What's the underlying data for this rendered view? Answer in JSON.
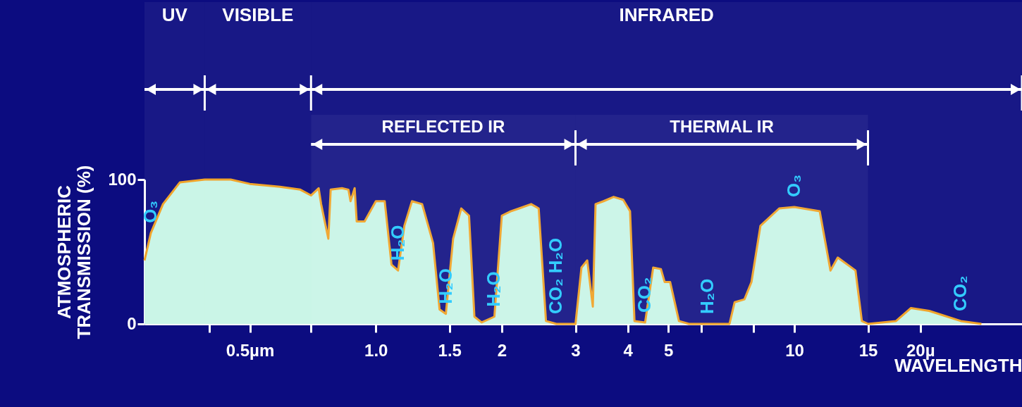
{
  "chart_data": {
    "type": "area",
    "ylabel": "ATMOSPHERIC TRANSMISSION (%)",
    "xlabel": "WAVELENGTH",
    "log": "x",
    "grid": false,
    "xlim": [
      0.28,
      35
    ],
    "ylim": [
      0,
      100
    ],
    "xticks": [
      {
        "value": 0.4,
        "label": null
      },
      {
        "value": 0.5,
        "label": "0.5µm"
      },
      {
        "value": 0.7,
        "label": null
      },
      {
        "value": 1,
        "label": "1.0"
      },
      1.5,
      2,
      3,
      4,
      5,
      {
        "value": 6,
        "label": null
      },
      {
        "value": 8,
        "label": null
      },
      10,
      15,
      {
        "value": 20,
        "label": "20µ"
      }
    ],
    "yticks": [
      0,
      100
    ],
    "x": [
      0.28,
      0.29,
      0.31,
      0.34,
      0.39,
      0.45,
      0.5,
      0.59,
      0.66,
      0.7,
      0.73,
      0.74,
      0.77,
      0.78,
      0.83,
      0.86,
      0.87,
      0.89,
      0.9,
      0.94,
      1.0,
      1.05,
      1.09,
      1.13,
      1.17,
      1.22,
      1.29,
      1.37,
      1.42,
      1.47,
      1.53,
      1.6,
      1.67,
      1.72,
      1.79,
      1.92,
      2.0,
      2.1,
      2.2,
      2.35,
      2.45,
      2.55,
      2.7,
      3.0,
      3.1,
      3.2,
      3.3,
      3.35,
      3.5,
      3.7,
      3.9,
      4.05,
      4.15,
      4.4,
      4.6,
      4.8,
      4.9,
      5.05,
      5.3,
      5.6,
      6.2,
      7.0,
      7.2,
      7.6,
      7.9,
      8.3,
      9.2,
      10,
      11.5,
      12.2,
      12.7,
      14,
      14.5,
      15,
      17.5,
      19,
      21,
      25,
      28
    ],
    "series": [
      {
        "color": "#c8f5e6",
        "values": [
          44,
          63,
          83,
          98,
          100,
          100,
          97,
          95,
          93,
          89,
          94,
          83,
          59,
          93,
          94,
          93,
          85,
          94,
          71,
          71,
          85,
          85,
          41,
          37,
          68,
          85,
          83,
          56,
          10,
          7,
          59,
          80,
          75,
          5,
          1,
          5,
          75,
          78,
          80,
          83,
          80,
          2,
          0,
          0,
          39,
          44,
          12,
          83,
          85,
          88,
          86,
          78,
          2,
          1,
          39,
          38,
          29,
          29,
          2,
          0,
          0,
          0,
          15,
          17,
          29,
          68,
          80,
          81,
          78,
          37,
          46,
          37,
          2,
          0,
          2,
          11,
          9,
          2,
          0
        ]
      }
    ],
    "bands": [
      {
        "axis": "x",
        "from": 0.28,
        "to": 0.39,
        "label": "UV"
      },
      {
        "axis": "x",
        "from": 0.39,
        "to": 0.7,
        "label": "VISIBLE"
      },
      {
        "axis": "x",
        "from": 0.7,
        "to": 35,
        "label": "INFRARED"
      },
      {
        "axis": "x",
        "from": 0.7,
        "to": 3,
        "label": "REFLECTED IR"
      },
      {
        "axis": "x",
        "from": 3,
        "to": 15,
        "label": "THERMAL IR"
      }
    ],
    "annotations": [
      {
        "text": "O₃",
        "x": 0.29,
        "y": 63
      },
      {
        "text": "H₂O",
        "x": 1.13,
        "y": 37
      },
      {
        "text": "H₂O",
        "x": 1.47,
        "y": 7
      },
      {
        "text": "H₂O",
        "x": 1.92,
        "y": 5
      },
      {
        "text": "CO₂ H₂O",
        "x": 2.7,
        "y": 0
      },
      {
        "text": "CO₂",
        "x": 4.4,
        "y": 1
      },
      {
        "text": "H₂O",
        "x": 6.2,
        "y": 0
      },
      {
        "text": "O₃",
        "x": 10,
        "y": 81
      },
      {
        "text": "CO₂",
        "x": 25,
        "y": 2
      }
    ]
  }
}
